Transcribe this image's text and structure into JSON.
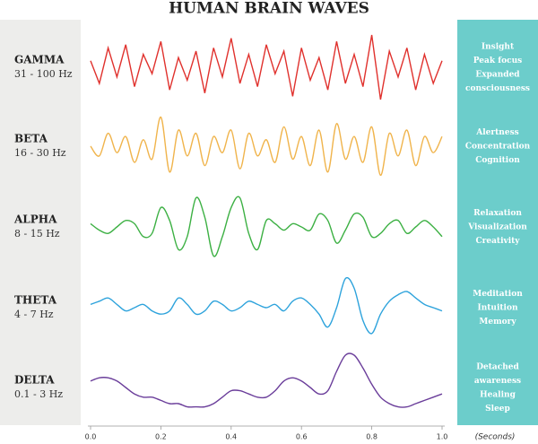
{
  "chart_data": {
    "type": "line",
    "title": "HUMAN BRAIN WAVES",
    "xlabel": "(Seconds)",
    "xlim": [
      0,
      1
    ],
    "ylim": [
      -1,
      1
    ],
    "xticks": [
      {
        "value": 0,
        "label": "0.0"
      },
      0.2,
      0.4,
      0.6,
      0.8,
      {
        "value": 1,
        "label": "1.0"
      }
    ],
    "x": [
      0,
      0.025,
      0.05,
      0.075,
      0.1,
      0.125,
      0.15,
      0.175,
      0.2,
      0.225,
      0.25,
      0.275,
      0.3,
      0.325,
      0.35,
      0.375,
      0.4,
      0.425,
      0.45,
      0.475,
      0.5,
      0.525,
      0.55,
      0.575,
      0.6,
      0.625,
      0.65,
      0.675,
      0.7,
      0.725,
      0.75,
      0.775,
      0.8,
      0.825,
      0.85,
      0.875,
      0.9,
      0.925,
      0.95,
      0.975,
      1
    ],
    "series": [
      {
        "name": "GAMMA",
        "range": "31 - 100 Hz",
        "color": "#e0312d",
        "smooth": false,
        "effects": [
          "Insight",
          "Peak focus",
          "Expanded",
          "consciousness"
        ],
        "values": [
          0.2,
          -0.5,
          0.6,
          -0.3,
          0.7,
          -0.6,
          0.4,
          -0.2,
          0.8,
          -0.7,
          0.3,
          -0.4,
          0.5,
          -0.8,
          0.6,
          -0.3,
          0.9,
          -0.5,
          0.4,
          -0.6,
          0.7,
          -0.2,
          0.5,
          -0.9,
          0.6,
          -0.4,
          0.3,
          -0.7,
          0.8,
          -0.5,
          0.4,
          -0.6,
          1.0,
          -1.0,
          0.5,
          -0.3,
          0.6,
          -0.7,
          0.4,
          -0.5,
          0.2
        ]
      },
      {
        "name": "BETA",
        "range": "16 - 30 Hz",
        "color": "#f0b44c",
        "smooth": true,
        "effects": [
          "Alertness",
          "Concentration",
          "Cognition"
        ],
        "values": [
          0,
          -0.3,
          0.4,
          -0.2,
          0.3,
          -0.5,
          0.2,
          -0.4,
          0.9,
          -0.8,
          0.5,
          -0.3,
          0.4,
          -0.6,
          0.3,
          -0.2,
          0.5,
          -0.7,
          0.4,
          -0.3,
          0.2,
          -0.5,
          0.6,
          -0.4,
          0.3,
          -0.6,
          0.5,
          -0.8,
          0.7,
          -0.4,
          0.3,
          -0.5,
          0.6,
          -0.9,
          0.4,
          -0.3,
          0.5,
          -0.6,
          0.3,
          -0.2,
          0.3
        ]
      },
      {
        "name": "ALPHA",
        "range": "8 - 15 Hz",
        "color": "#3cb043",
        "smooth": true,
        "effects": [
          "Relaxation",
          "Visualization",
          "Creativity"
        ],
        "values": [
          0.1,
          -0.1,
          -0.2,
          0,
          0.2,
          0.1,
          -0.3,
          -0.2,
          0.6,
          0.2,
          -0.7,
          -0.3,
          0.9,
          0.3,
          -0.9,
          -0.3,
          0.6,
          0.9,
          -0.2,
          -0.7,
          0.2,
          0.1,
          -0.1,
          0.1,
          0,
          -0.1,
          0.4,
          0.2,
          -0.5,
          -0.1,
          0.4,
          0.3,
          -0.3,
          -0.2,
          0.1,
          0.2,
          -0.2,
          0,
          0.2,
          0,
          -0.3
        ]
      },
      {
        "name": "THETA",
        "range": "4 - 7 Hz",
        "color": "#2ea3dc",
        "smooth": true,
        "effects": [
          "Meditation",
          "Intuition",
          "Memory"
        ],
        "values": [
          0.1,
          0.2,
          0.3,
          0.1,
          -0.1,
          0,
          0.1,
          -0.1,
          -0.2,
          -0.1,
          0.3,
          0.1,
          -0.2,
          -0.1,
          0.2,
          0.1,
          -0.1,
          0,
          0.2,
          0.1,
          0,
          0.1,
          -0.1,
          0.2,
          0.3,
          0.1,
          -0.2,
          -0.6,
          0,
          0.9,
          0.6,
          -0.4,
          -0.8,
          -0.2,
          0.2,
          0.4,
          0.5,
          0.3,
          0.1,
          0,
          -0.1
        ]
      },
      {
        "name": "DELTA",
        "range": "0.1 - 3 Hz",
        "color": "#6a3d9a",
        "smooth": true,
        "effects": [
          "Detached",
          "awareness",
          "Healing",
          "Sleep"
        ],
        "values": [
          0.2,
          0.3,
          0.3,
          0.2,
          0,
          -0.2,
          -0.3,
          -0.3,
          -0.4,
          -0.5,
          -0.5,
          -0.6,
          -0.6,
          -0.6,
          -0.5,
          -0.3,
          -0.1,
          -0.1,
          -0.2,
          -0.3,
          -0.3,
          -0.1,
          0.2,
          0.3,
          0.2,
          0,
          -0.2,
          -0.1,
          0.5,
          1.0,
          1.0,
          0.6,
          0.1,
          -0.3,
          -0.5,
          -0.6,
          -0.6,
          -0.5,
          -0.4,
          -0.3,
          -0.2
        ]
      }
    ]
  }
}
